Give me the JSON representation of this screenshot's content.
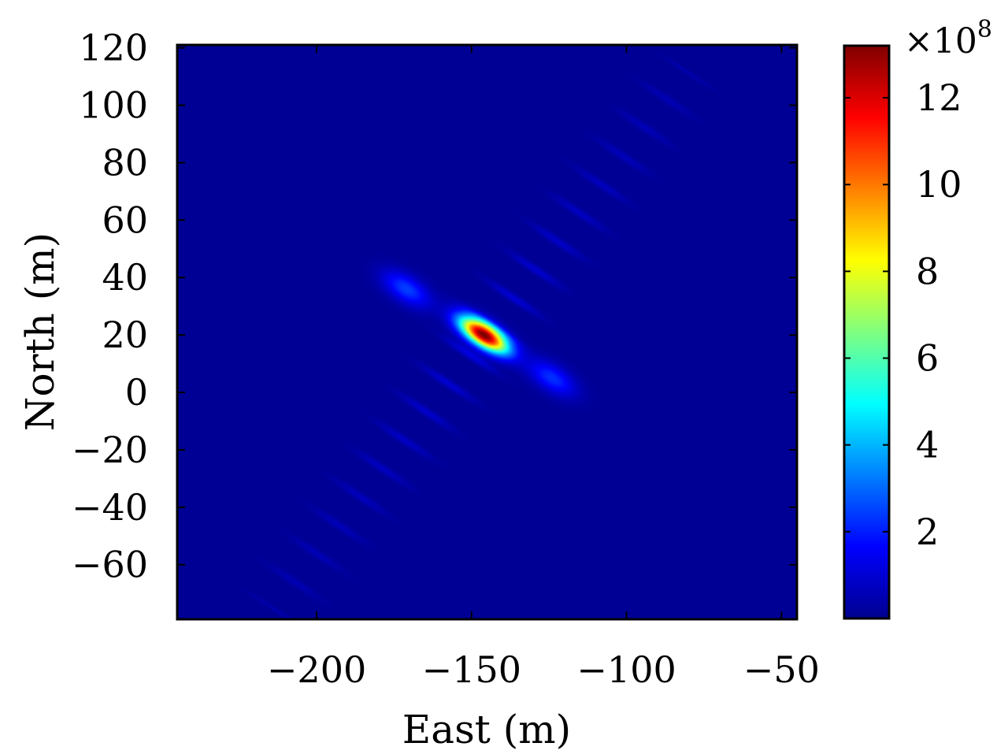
{
  "chart_data": {
    "type": "heatmap",
    "title": "",
    "xlabel": "East (m)",
    "ylabel": "North (m)",
    "xlim": [
      -245,
      -45
    ],
    "ylim": [
      -79,
      121
    ],
    "x_ticks": [
      -200,
      -150,
      -100,
      -50
    ],
    "x_tick_labels": [
      "−200",
      "−150",
      "−100",
      "−50"
    ],
    "y_ticks": [
      120,
      100,
      80,
      60,
      40,
      20,
      0,
      -20,
      -40,
      -60
    ],
    "y_tick_labels": [
      "120",
      "100",
      "80",
      "60",
      "40",
      "20",
      "0",
      "−20",
      "−40",
      "−60"
    ],
    "colormap": "jet",
    "background_level": 0,
    "peak": {
      "x": -146,
      "y": 20,
      "value": 1320000000.0
    },
    "sidelobes": [
      {
        "x": -171,
        "y": 36,
        "value": 220000000.0
      },
      {
        "x": -124,
        "y": 5,
        "value": 200000000.0
      }
    ],
    "ridge": {
      "x_start": -214,
      "y_start": -76,
      "x_end": -80,
      "y_end": 112,
      "fringe_count": 38,
      "peak_fringe_value": 100000000.0
    },
    "colorbar": {
      "min": 0,
      "max": 13.2,
      "ticks": [
        2,
        4,
        6,
        8,
        10,
        12
      ],
      "tick_labels": [
        "2",
        "4",
        "6",
        "8",
        "10",
        "12"
      ],
      "multiplier_label": "×10",
      "multiplier_exponent": "8"
    },
    "grid": false,
    "legend": "none"
  }
}
